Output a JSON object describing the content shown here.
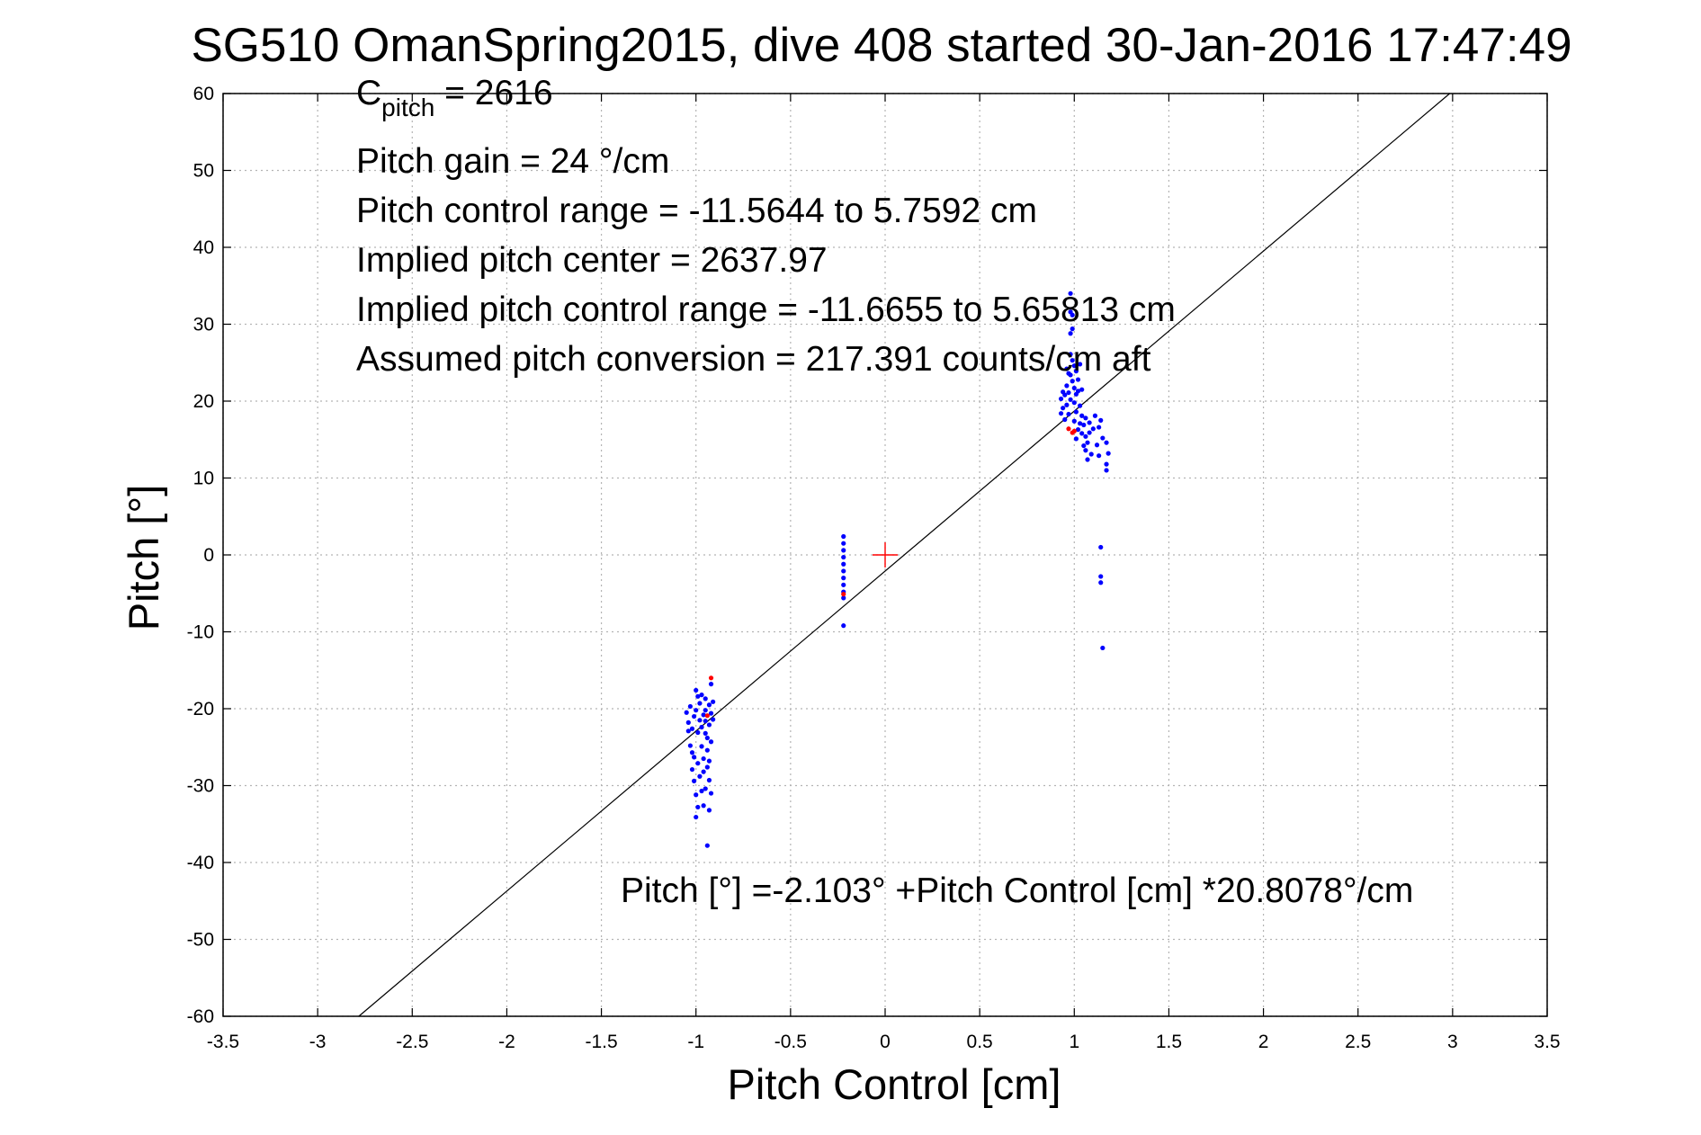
{
  "chart_data": {
    "type": "scatter",
    "title": "SG510 OmanSpring2015, dive 408 started 30-Jan-2016 17:47:49",
    "xlabel": "Pitch Control [cm]",
    "ylabel": "Pitch [°]",
    "xlim": [
      -3.5,
      3.5
    ],
    "ylim": [
      -60,
      60
    ],
    "xticks": [
      -3.5,
      -3,
      -2.5,
      -2,
      -1.5,
      -1,
      -0.5,
      0,
      0.5,
      1,
      1.5,
      2,
      2.5,
      3,
      3.5
    ],
    "yticks": [
      -60,
      -50,
      -40,
      -30,
      -20,
      -10,
      0,
      10,
      20,
      30,
      40,
      50,
      60
    ],
    "xtick_labels": [
      "-3.5",
      "-3",
      "-2.5",
      "-2",
      "-1.5",
      "-1",
      "-0.5",
      "0",
      "0.5",
      "1",
      "1.5",
      "2",
      "2.5",
      "3",
      "3.5"
    ],
    "ytick_labels": [
      "-60",
      "-50",
      "-40",
      "-30",
      "-20",
      "-10",
      "0",
      "10",
      "20",
      "30",
      "40",
      "50",
      "60"
    ],
    "grid": true,
    "annotations": {
      "c_pitch_main": "C",
      "c_pitch_sub": "pitch",
      "c_pitch_value": " = 2616",
      "pitch_gain": "Pitch gain = 24 °/cm",
      "control_range": "Pitch control range = -11.5644 to 5.7592 cm",
      "implied_center": "Implied pitch center = 2637.97",
      "implied_range": "Implied pitch control range = -11.6655 to 5.65813 cm",
      "conversion": "Assumed pitch conversion = 217.391 counts/cm aft",
      "fit_equation": "Pitch [°] =-2.103° +Pitch Control [cm] *20.8078°/cm"
    },
    "fit_line": {
      "intercept": -2.103,
      "slope": 20.8078,
      "color": "#000000"
    },
    "center_marker": {
      "x": 0,
      "y": 0,
      "color": "#ff0000"
    },
    "series": [
      {
        "color": "#0000ff",
        "points": [
          [
            -1.05,
            -20.5
          ],
          [
            -1.04,
            -21.8
          ],
          [
            -1.03,
            -19.7
          ],
          [
            -1.02,
            -22.6
          ],
          [
            -1.01,
            -21.0
          ],
          [
            -1.0,
            -20.2
          ],
          [
            -0.99,
            -23.1
          ],
          [
            -0.98,
            -21.5
          ],
          [
            -1.03,
            -24.8
          ],
          [
            -1.01,
            -26.3
          ],
          [
            -1.0,
            -17.6
          ],
          [
            -0.99,
            -18.4
          ],
          [
            -1.02,
            -27.9
          ],
          [
            -1.01,
            -29.4
          ],
          [
            -1.0,
            -31.2
          ],
          [
            -0.99,
            -32.8
          ],
          [
            -1.0,
            -34.1
          ],
          [
            -0.98,
            -19.3
          ],
          [
            -0.97,
            -22.4
          ],
          [
            -0.97,
            -24.9
          ],
          [
            -0.96,
            -20.8
          ],
          [
            -0.96,
            -26.5
          ],
          [
            -0.96,
            -28.2
          ],
          [
            -0.95,
            -18.7
          ],
          [
            -0.95,
            -21.6
          ],
          [
            -0.94,
            -23.8
          ],
          [
            -0.94,
            -25.4
          ],
          [
            -0.93,
            -19.5
          ],
          [
            -0.93,
            -22.1
          ],
          [
            -0.92,
            -24.3
          ],
          [
            -0.92,
            -20.6
          ],
          [
            -0.94,
            -27.6
          ],
          [
            -0.93,
            -29.3
          ],
          [
            -0.92,
            -31.0
          ],
          [
            -0.93,
            -33.2
          ],
          [
            -0.95,
            -30.4
          ],
          [
            -0.96,
            -32.6
          ],
          [
            -0.98,
            -28.8
          ],
          [
            -0.97,
            -30.7
          ],
          [
            -0.94,
            -37.8
          ],
          [
            -0.92,
            -16.8
          ],
          [
            -0.91,
            -19.1
          ],
          [
            -0.95,
            -20.2
          ],
          [
            -1.04,
            -22.9
          ],
          [
            -1.02,
            -25.7
          ],
          [
            -0.99,
            -27.1
          ],
          [
            -0.97,
            -18.2
          ],
          [
            -0.95,
            -23.2
          ],
          [
            -0.93,
            -26.8
          ],
          [
            -0.91,
            -21.4
          ],
          [
            -0.22,
            2.4
          ],
          [
            -0.22,
            1.5
          ],
          [
            -0.22,
            0.6
          ],
          [
            -0.22,
            -0.3
          ],
          [
            -0.22,
            -1.2
          ],
          [
            -0.22,
            -2.1
          ],
          [
            -0.22,
            -3.0
          ],
          [
            -0.22,
            -3.9
          ],
          [
            -0.22,
            -4.8
          ],
          [
            -0.22,
            -5.6
          ],
          [
            -0.22,
            -9.2
          ],
          [
            0.93,
            18.4
          ],
          [
            0.93,
            20.3
          ],
          [
            0.94,
            19.1
          ],
          [
            0.94,
            21.2
          ],
          [
            0.95,
            17.6
          ],
          [
            0.95,
            20.8
          ],
          [
            0.96,
            19.5
          ],
          [
            0.96,
            22.0
          ],
          [
            0.97,
            18.3
          ],
          [
            0.97,
            21.1
          ],
          [
            0.98,
            20.2
          ],
          [
            0.98,
            23.4
          ],
          [
            0.98,
            26.1
          ],
          [
            0.98,
            28.8
          ],
          [
            0.98,
            31.6
          ],
          [
            0.98,
            34.0
          ],
          [
            0.99,
            22.6
          ],
          [
            0.99,
            25.3
          ],
          [
            0.99,
            29.4
          ],
          [
            1.0,
            17.4
          ],
          [
            1.0,
            19.8
          ],
          [
            1.0,
            21.7
          ],
          [
            1.0,
            24.6
          ],
          [
            1.01,
            15.1
          ],
          [
            1.01,
            18.6
          ],
          [
            1.01,
            20.9
          ],
          [
            1.02,
            16.3
          ],
          [
            1.02,
            22.8
          ],
          [
            1.03,
            17.1
          ],
          [
            1.03,
            19.4
          ],
          [
            1.04,
            15.8
          ],
          [
            1.04,
            18.1
          ],
          [
            1.04,
            21.5
          ],
          [
            1.05,
            14.2
          ],
          [
            1.05,
            16.9
          ],
          [
            1.06,
            13.6
          ],
          [
            1.06,
            15.4
          ],
          [
            1.06,
            17.8
          ],
          [
            1.07,
            12.4
          ],
          [
            1.07,
            14.6
          ],
          [
            1.08,
            15.9
          ],
          [
            1.08,
            17.2
          ],
          [
            1.09,
            13.1
          ],
          [
            1.1,
            16.4
          ],
          [
            1.11,
            18.1
          ],
          [
            1.12,
            14.3
          ],
          [
            1.13,
            16.6
          ],
          [
            1.13,
            12.9
          ],
          [
            1.14,
            17.5
          ],
          [
            1.15,
            15.2
          ],
          [
            1.17,
            14.6
          ],
          [
            1.17,
            11.8
          ],
          [
            1.18,
            13.2
          ],
          [
            1.17,
            11.0
          ],
          [
            0.97,
            23.6
          ],
          [
            0.99,
            31.2
          ],
          [
            1.01,
            23.9
          ],
          [
            0.96,
            24.2
          ],
          [
            1.02,
            21.3
          ],
          [
            1.03,
            24.8
          ],
          [
            1.14,
            1.0
          ],
          [
            1.14,
            -2.8
          ],
          [
            1.14,
            -3.6
          ],
          [
            1.15,
            -12.1
          ]
        ]
      },
      {
        "color": "#ff0000",
        "points": [
          [
            -0.92,
            -16.0
          ],
          [
            -0.94,
            -20.9
          ],
          [
            -0.22,
            -5.1
          ],
          [
            0.97,
            16.4
          ],
          [
            1.0,
            16.1
          ],
          [
            0.99,
            15.9
          ]
        ]
      }
    ]
  }
}
